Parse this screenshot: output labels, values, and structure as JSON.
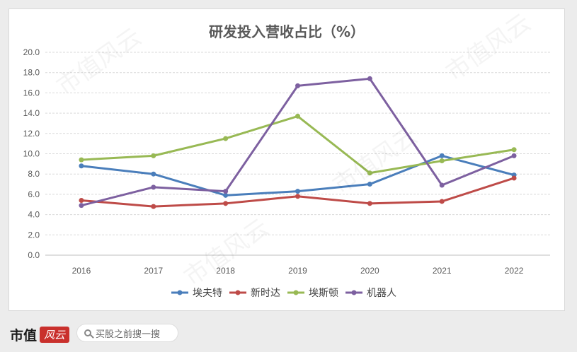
{
  "chart_data": {
    "type": "line",
    "title": "研发投入营收占比（%）",
    "categories": [
      "2016",
      "2017",
      "2018",
      "2019",
      "2020",
      "2021",
      "2022"
    ],
    "ylim": [
      0,
      20
    ],
    "yticks": [
      "0.0",
      "2.0",
      "4.0",
      "6.0",
      "8.0",
      "10.0",
      "12.0",
      "14.0",
      "16.0",
      "18.0",
      "20.0"
    ],
    "grid": true,
    "legend_position": "bottom",
    "series": [
      {
        "name": "埃夫特",
        "color": "#4a7ebb",
        "values": [
          8.8,
          8.0,
          5.9,
          6.3,
          7.0,
          9.8,
          7.9
        ]
      },
      {
        "name": "新时达",
        "color": "#be4b48",
        "values": [
          5.4,
          4.8,
          5.1,
          5.8,
          5.1,
          5.3,
          7.6
        ]
      },
      {
        "name": "埃斯顿",
        "color": "#98b954",
        "values": [
          9.4,
          9.8,
          11.5,
          13.7,
          8.1,
          9.3,
          10.4
        ]
      },
      {
        "name": "机器人",
        "color": "#7d60a0",
        "values": [
          4.9,
          6.7,
          6.3,
          16.7,
          17.4,
          6.9,
          9.8
        ]
      }
    ]
  },
  "footer": {
    "brand": "市值",
    "brand_badge": "风云",
    "search_placeholder": "买股之前搜一搜"
  },
  "watermark": "市值风云"
}
